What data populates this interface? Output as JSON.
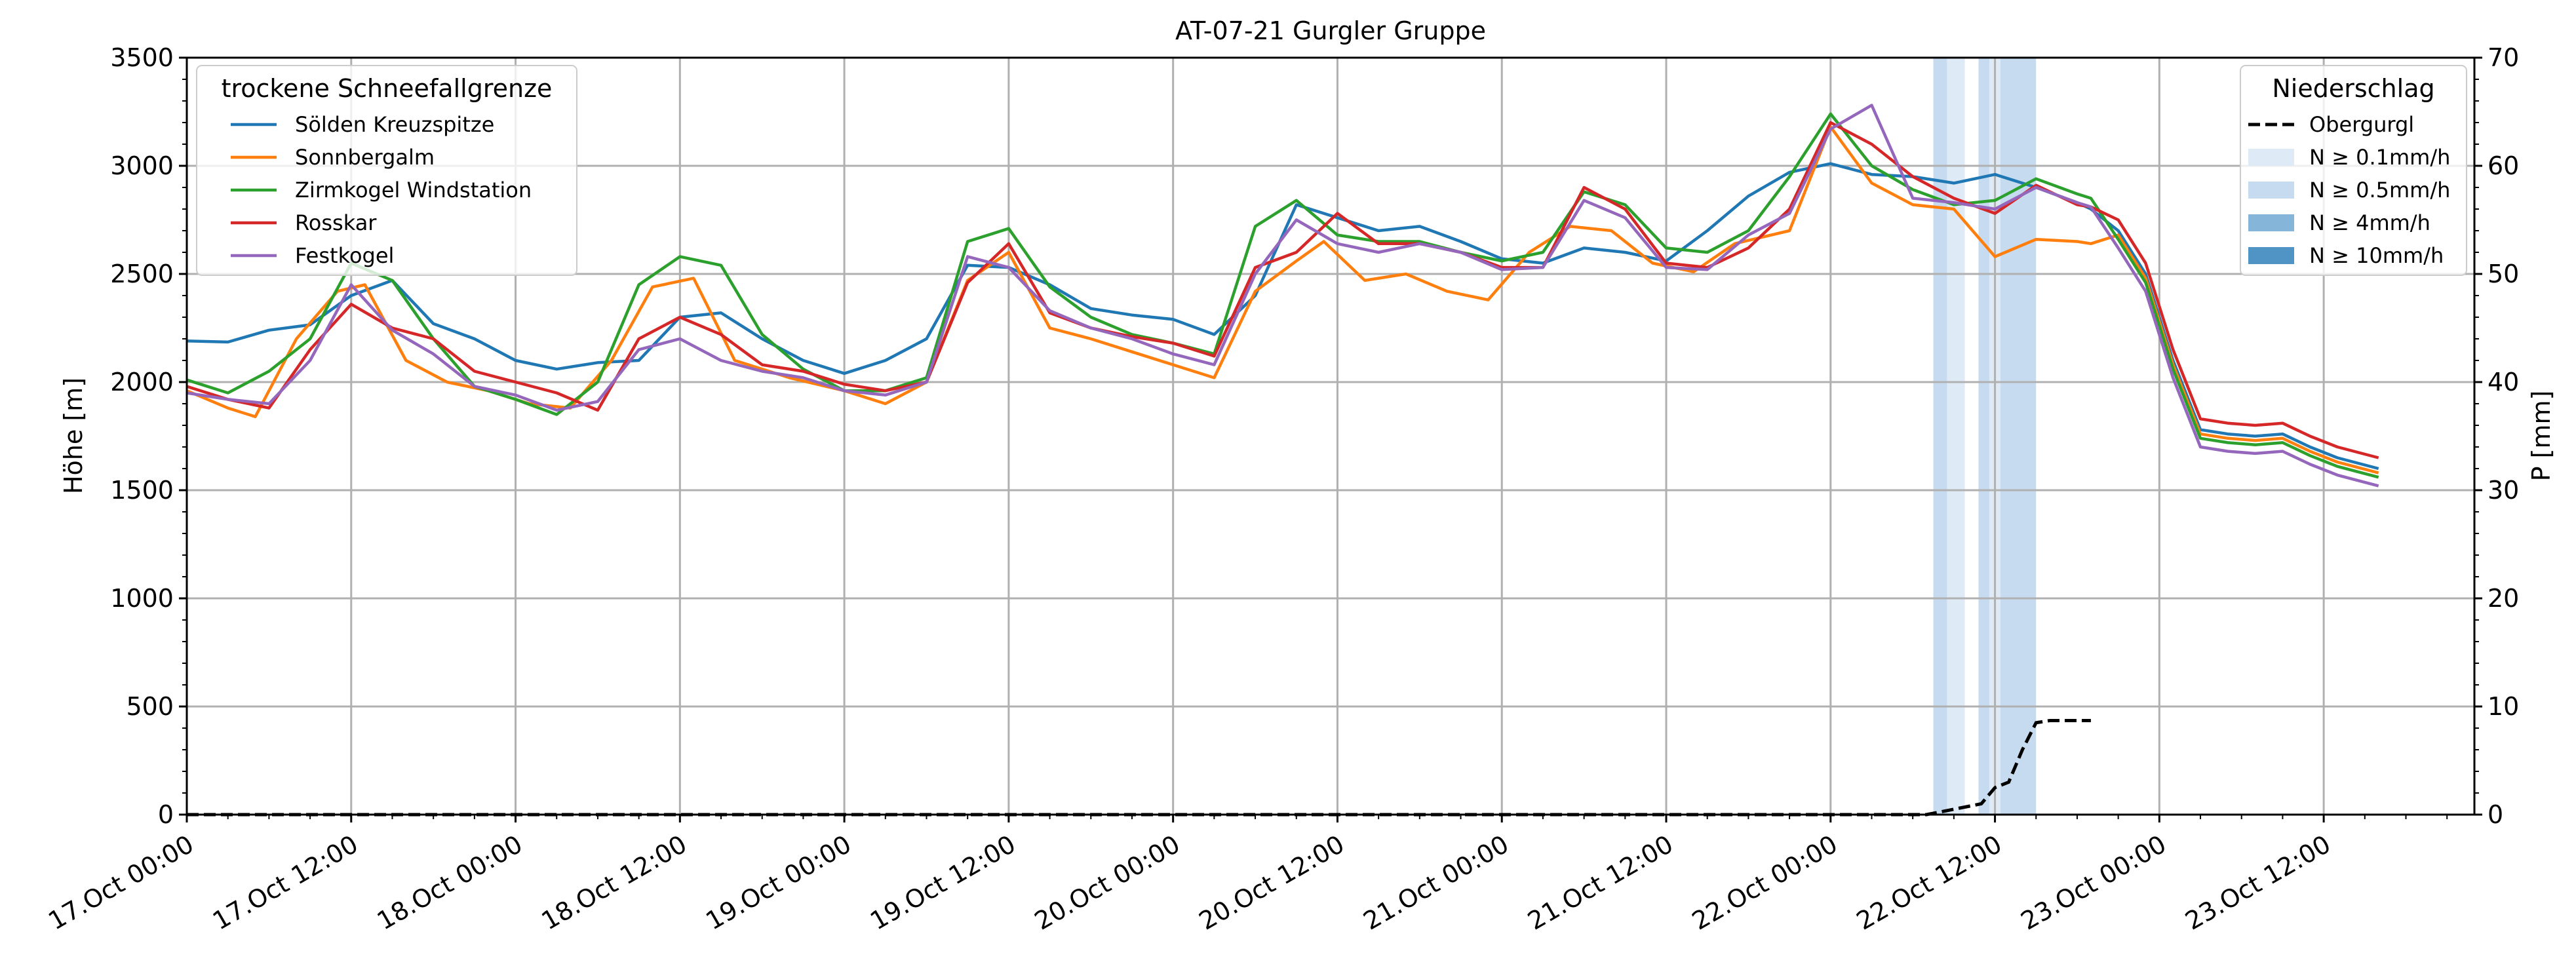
{
  "chart_data": {
    "type": "line",
    "title": "AT-07-21 Gurgler Gruppe",
    "xlabel": "",
    "ylabel": "Höhe [m]",
    "y2label": "P [mm]",
    "ylim": [
      0,
      3500
    ],
    "y2lim": [
      0,
      70
    ],
    "yticks": [
      0,
      500,
      1000,
      1500,
      2000,
      2500,
      3000,
      3500
    ],
    "y2ticks": [
      0,
      10,
      20,
      30,
      40,
      50,
      60,
      70
    ],
    "xticks": [
      "17.Oct 00:00",
      "17.Oct 12:00",
      "18.Oct 00:00",
      "18.Oct 12:00",
      "19.Oct 00:00",
      "19.Oct 12:00",
      "20.Oct 00:00",
      "20.Oct 12:00",
      "21.Oct 00:00",
      "21.Oct 12:00",
      "22.Oct 00:00",
      "22.Oct 12:00",
      "23.Oct 00:00",
      "23.Oct 12:00"
    ],
    "x_unit": "hours since 17.Oct 00:00",
    "x_range": [
      0,
      167
    ],
    "grid": true,
    "legend_left": {
      "title": "trockene Schneefallgrenze",
      "placement": "top-left"
    },
    "legend_right": {
      "title": "Niederschlag",
      "placement": "top-right",
      "items": [
        {
          "label": "Obergurgl",
          "style": "dashed-line",
          "color": "#000000"
        },
        {
          "label": "N ≥ 0.1mm/h",
          "style": "patch",
          "color": "#deebf7"
        },
        {
          "label": "N ≥ 0.5mm/h",
          "style": "patch",
          "color": "#c6dbef"
        },
        {
          "label": "N ≥ 4mm/h",
          "style": "patch",
          "color": "#85b6da"
        },
        {
          "label": "N ≥ 10mm/h",
          "style": "patch",
          "color": "#4f94c4"
        }
      ]
    },
    "series": [
      {
        "name": "Sölden Kreuzspitze",
        "color": "#1f77b4",
        "points": [
          [
            0,
            2190
          ],
          [
            3,
            2185
          ],
          [
            6,
            2240
          ],
          [
            9,
            2265
          ],
          [
            12,
            2400
          ],
          [
            15,
            2470
          ],
          [
            18,
            2270
          ],
          [
            21,
            2200
          ],
          [
            24,
            2100
          ],
          [
            27,
            2060
          ],
          [
            30,
            2090
          ],
          [
            33,
            2100
          ],
          [
            36,
            2300
          ],
          [
            39,
            2320
          ],
          [
            42,
            2200
          ],
          [
            45,
            2100
          ],
          [
            48,
            2040
          ],
          [
            51,
            2100
          ],
          [
            54,
            2200
          ],
          [
            57,
            2540
          ],
          [
            60,
            2530
          ],
          [
            63,
            2450
          ],
          [
            66,
            2340
          ],
          [
            69,
            2310
          ],
          [
            72,
            2290
          ],
          [
            75,
            2220
          ],
          [
            78,
            2400
          ],
          [
            81,
            2820
          ],
          [
            84,
            2760
          ],
          [
            87,
            2700
          ],
          [
            90,
            2720
          ],
          [
            93,
            2650
          ],
          [
            96,
            2570
          ],
          [
            99,
            2550
          ],
          [
            102,
            2620
          ],
          [
            105,
            2600
          ],
          [
            108,
            2560
          ],
          [
            111,
            2700
          ],
          [
            114,
            2860
          ],
          [
            117,
            2970
          ],
          [
            120,
            3010
          ],
          [
            123,
            2960
          ],
          [
            126,
            2950
          ],
          [
            129,
            2920
          ],
          [
            132,
            2960
          ],
          [
            135,
            2900
          ],
          [
            138,
            2830
          ],
          [
            139,
            2800
          ]
        ]
      },
      {
        "name": "Sonnbergalm",
        "color": "#ff7f0e",
        "points": [
          [
            0,
            1960
          ],
          [
            3,
            1880
          ],
          [
            5,
            1840
          ],
          [
            8,
            2200
          ],
          [
            11,
            2420
          ],
          [
            13,
            2450
          ],
          [
            16,
            2100
          ],
          [
            19,
            2000
          ],
          [
            22,
            1960
          ],
          [
            25,
            1900
          ],
          [
            28,
            1880
          ],
          [
            31,
            2100
          ],
          [
            34,
            2440
          ],
          [
            37,
            2480
          ],
          [
            40,
            2100
          ],
          [
            44,
            2020
          ],
          [
            48,
            1960
          ],
          [
            51,
            1900
          ],
          [
            54,
            2000
          ],
          [
            57,
            2470
          ],
          [
            60,
            2600
          ],
          [
            63,
            2250
          ],
          [
            66,
            2200
          ],
          [
            69,
            2140
          ],
          [
            72,
            2080
          ],
          [
            75,
            2020
          ],
          [
            78,
            2420
          ],
          [
            81,
            2560
          ],
          [
            83,
            2650
          ],
          [
            86,
            2470
          ],
          [
            89,
            2500
          ],
          [
            92,
            2420
          ],
          [
            95,
            2380
          ],
          [
            98,
            2600
          ],
          [
            101,
            2720
          ],
          [
            104,
            2700
          ],
          [
            107,
            2550
          ],
          [
            110,
            2510
          ],
          [
            113,
            2640
          ],
          [
            117,
            2700
          ],
          [
            120,
            3180
          ],
          [
            123,
            2920
          ],
          [
            126,
            2820
          ],
          [
            129,
            2800
          ],
          [
            132,
            2580
          ],
          [
            135,
            2660
          ],
          [
            138,
            2650
          ],
          [
            139,
            2640
          ]
        ]
      },
      {
        "name": "Zirmkogel Windstation",
        "color": "#2ca02c",
        "points": [
          [
            0,
            2010
          ],
          [
            3,
            1950
          ],
          [
            6,
            2050
          ],
          [
            9,
            2200
          ],
          [
            12,
            2550
          ],
          [
            15,
            2470
          ],
          [
            18,
            2200
          ],
          [
            21,
            1980
          ],
          [
            24,
            1920
          ],
          [
            27,
            1850
          ],
          [
            30,
            2000
          ],
          [
            33,
            2450
          ],
          [
            36,
            2580
          ],
          [
            39,
            2540
          ],
          [
            42,
            2220
          ],
          [
            45,
            2060
          ],
          [
            48,
            1960
          ],
          [
            51,
            1960
          ],
          [
            54,
            2020
          ],
          [
            57,
            2650
          ],
          [
            60,
            2710
          ],
          [
            63,
            2440
          ],
          [
            66,
            2300
          ],
          [
            69,
            2220
          ],
          [
            72,
            2180
          ],
          [
            75,
            2130
          ],
          [
            78,
            2720
          ],
          [
            81,
            2840
          ],
          [
            84,
            2680
          ],
          [
            87,
            2650
          ],
          [
            90,
            2650
          ],
          [
            93,
            2600
          ],
          [
            96,
            2560
          ],
          [
            99,
            2600
          ],
          [
            102,
            2880
          ],
          [
            105,
            2820
          ],
          [
            108,
            2620
          ],
          [
            111,
            2600
          ],
          [
            114,
            2700
          ],
          [
            117,
            2950
          ],
          [
            120,
            3240
          ],
          [
            123,
            3000
          ],
          [
            126,
            2890
          ],
          [
            129,
            2820
          ],
          [
            132,
            2840
          ],
          [
            135,
            2940
          ],
          [
            138,
            2870
          ],
          [
            139,
            2850
          ]
        ]
      },
      {
        "name": "Rosskar",
        "color": "#d62728",
        "points": [
          [
            0,
            1980
          ],
          [
            3,
            1920
          ],
          [
            6,
            1880
          ],
          [
            9,
            2150
          ],
          [
            12,
            2360
          ],
          [
            15,
            2250
          ],
          [
            18,
            2200
          ],
          [
            21,
            2050
          ],
          [
            24,
            2000
          ],
          [
            27,
            1950
          ],
          [
            30,
            1870
          ],
          [
            33,
            2200
          ],
          [
            36,
            2300
          ],
          [
            39,
            2220
          ],
          [
            42,
            2080
          ],
          [
            45,
            2050
          ],
          [
            48,
            1990
          ],
          [
            51,
            1960
          ],
          [
            54,
            2000
          ],
          [
            57,
            2460
          ],
          [
            60,
            2640
          ],
          [
            63,
            2320
          ],
          [
            66,
            2250
          ],
          [
            69,
            2210
          ],
          [
            72,
            2180
          ],
          [
            75,
            2120
          ],
          [
            78,
            2530
          ],
          [
            81,
            2600
          ],
          [
            84,
            2780
          ],
          [
            87,
            2640
          ],
          [
            90,
            2640
          ],
          [
            93,
            2600
          ],
          [
            96,
            2530
          ],
          [
            99,
            2530
          ],
          [
            102,
            2900
          ],
          [
            105,
            2800
          ],
          [
            108,
            2550
          ],
          [
            111,
            2530
          ],
          [
            114,
            2620
          ],
          [
            117,
            2800
          ],
          [
            120,
            3200
          ],
          [
            123,
            3100
          ],
          [
            126,
            2950
          ],
          [
            129,
            2850
          ],
          [
            132,
            2780
          ],
          [
            135,
            2910
          ],
          [
            138,
            2820
          ],
          [
            139,
            2810
          ]
        ]
      },
      {
        "name": "Festkogel",
        "color": "#9467bd",
        "points": [
          [
            0,
            1950
          ],
          [
            3,
            1920
          ],
          [
            6,
            1900
          ],
          [
            9,
            2100
          ],
          [
            12,
            2450
          ],
          [
            15,
            2240
          ],
          [
            18,
            2130
          ],
          [
            21,
            1980
          ],
          [
            24,
            1940
          ],
          [
            27,
            1870
          ],
          [
            30,
            1910
          ],
          [
            33,
            2150
          ],
          [
            36,
            2200
          ],
          [
            39,
            2100
          ],
          [
            42,
            2050
          ],
          [
            45,
            2020
          ],
          [
            48,
            1960
          ],
          [
            51,
            1940
          ],
          [
            54,
            2000
          ],
          [
            57,
            2580
          ],
          [
            60,
            2530
          ],
          [
            63,
            2330
          ],
          [
            66,
            2250
          ],
          [
            69,
            2200
          ],
          [
            72,
            2130
          ],
          [
            75,
            2080
          ],
          [
            78,
            2500
          ],
          [
            81,
            2750
          ],
          [
            84,
            2640
          ],
          [
            87,
            2600
          ],
          [
            90,
            2640
          ],
          [
            93,
            2600
          ],
          [
            96,
            2520
          ],
          [
            99,
            2530
          ],
          [
            102,
            2840
          ],
          [
            105,
            2760
          ],
          [
            108,
            2530
          ],
          [
            111,
            2520
          ],
          [
            114,
            2680
          ],
          [
            117,
            2780
          ],
          [
            120,
            3170
          ],
          [
            123,
            3280
          ],
          [
            126,
            2850
          ],
          [
            129,
            2830
          ],
          [
            132,
            2800
          ],
          [
            135,
            2900
          ],
          [
            138,
            2830
          ],
          [
            139,
            2810
          ]
        ]
      }
    ],
    "late_series_segment_note": "",
    "late_series": {
      "points_all": [
        [
          139,
          2800
        ],
        [
          141,
          2700
        ],
        [
          143,
          2500
        ],
        [
          145,
          2100
        ],
        [
          147,
          1780
        ],
        [
          149,
          1760
        ],
        [
          151,
          1750
        ],
        [
          153,
          1760
        ],
        [
          155,
          1700
        ],
        [
          157,
          1650
        ],
        [
          160,
          1600
        ]
      ],
      "offsets": {
        "Sölden Kreuzspitze": 0,
        "Sonnbergalm": -20,
        "Zirmkogel Windstation": -40,
        "Rosskar": 50,
        "Festkogel": -80
      }
    },
    "precip_cumulative": {
      "name": "Obergurgl",
      "unit": "mm",
      "points": [
        [
          0,
          0
        ],
        [
          127,
          0
        ],
        [
          129,
          0.5
        ],
        [
          131,
          1
        ],
        [
          132,
          2.5
        ],
        [
          133,
          3
        ],
        [
          134,
          6
        ],
        [
          135,
          8.5
        ],
        [
          136,
          8.7
        ],
        [
          139,
          8.7
        ]
      ]
    },
    "precip_bands": [
      {
        "from": 127.5,
        "to": 128.5,
        "level": "N ≥ 0.5mm/h"
      },
      {
        "from": 128.5,
        "to": 129.8,
        "level": "N ≥ 0.1mm/h"
      },
      {
        "from": 130.8,
        "to": 131.6,
        "level": "N ≥ 0.5mm/h"
      },
      {
        "from": 131.6,
        "to": 132.4,
        "level": "N ≥ 0.1mm/h"
      },
      {
        "from": 132.4,
        "to": 135.0,
        "level": "N ≥ 0.5mm/h"
      }
    ]
  }
}
